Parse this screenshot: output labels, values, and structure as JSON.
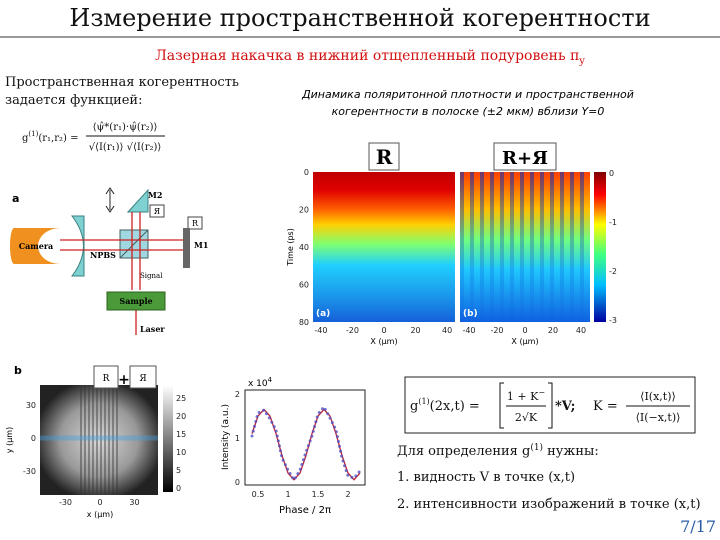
{
  "header": {
    "title": "Измерение пространственной когерентности",
    "subtitle": "Лазерная накачка в нижний отщепленный подуровень π",
    "subtitle_index": "y"
  },
  "definition": {
    "lines": [
      "Пространственная когерентность",
      "задается функцией:"
    ],
    "formula": {
      "lhs": "g",
      "lhs_sup": "(1)",
      "lhs_args": "(r₁,r₂) =",
      "numerator": "⟨ψ̂*(r₁)·ψ̂(r₂)⟩",
      "denominator": "√⟨I(r₁)⟩ √⟨I(r₂)⟩"
    }
  },
  "setup": {
    "panel": "a",
    "labels": {
      "camera": "Camera",
      "npbs": "NPBS",
      "m2": "M2",
      "m1": "M1",
      "mirror_label": "Я",
      "r_label": "R",
      "signal": "Signal",
      "sample": "Sample",
      "laser": "Laser"
    }
  },
  "dynamics": {
    "caption": [
      "Динамика поляритонной плотности и пространственной",
      "когерентности в полоске (±2 мкм) вблизи Y=0"
    ],
    "panels": [
      {
        "title": "R",
        "label": "(a)"
      },
      {
        "title": "R+Я",
        "label": "(b)"
      }
    ],
    "y_label": "Time (ps)",
    "y_ticks": [
      0,
      20,
      40,
      60,
      80
    ],
    "x_label": "X (μm)",
    "x_ticks": [
      -40,
      -20,
      0,
      20,
      40
    ],
    "colorbar_ticks": [
      0,
      -1,
      -2,
      -3
    ]
  },
  "interferogram": {
    "panel": "b",
    "boxes": [
      "R",
      "+",
      "Я"
    ],
    "y_label": "y (μm)",
    "y_ticks": [
      30,
      0,
      -30
    ],
    "x_label": "x (μm)",
    "x_ticks": [
      -30,
      0,
      30
    ],
    "colorbar_ticks": [
      25,
      20,
      15,
      10,
      5,
      0
    ]
  },
  "phase_plot": {
    "scale": "x 10",
    "scale_exp": "4",
    "y_label": "Intensity (a.u.)",
    "y_ticks": [
      0,
      1,
      2
    ],
    "x_label": "Phase / 2π",
    "x_ticks": [
      0.5,
      1,
      1.5,
      2
    ]
  },
  "visibility_formula": {
    "lhs": "g",
    "lhs_sup": "(1)",
    "lhs_args": "(2x,t) =",
    "num": "1 + K",
    "num_sup": "−",
    "den": "2√K",
    "factor": "*V;",
    "k_lhs": "K =",
    "k_num": "⟨I(x,t)⟩",
    "k_den": "⟨I(−x,t)⟩"
  },
  "requirements": {
    "intro": "Для определения g",
    "intro_sup": "(1)",
    "intro_end": "нужны:",
    "items": [
      "1. видность V в точке (x,t)",
      "2. интенсивности изображений в точке (x,t)"
    ]
  },
  "page_number": "7/17"
}
